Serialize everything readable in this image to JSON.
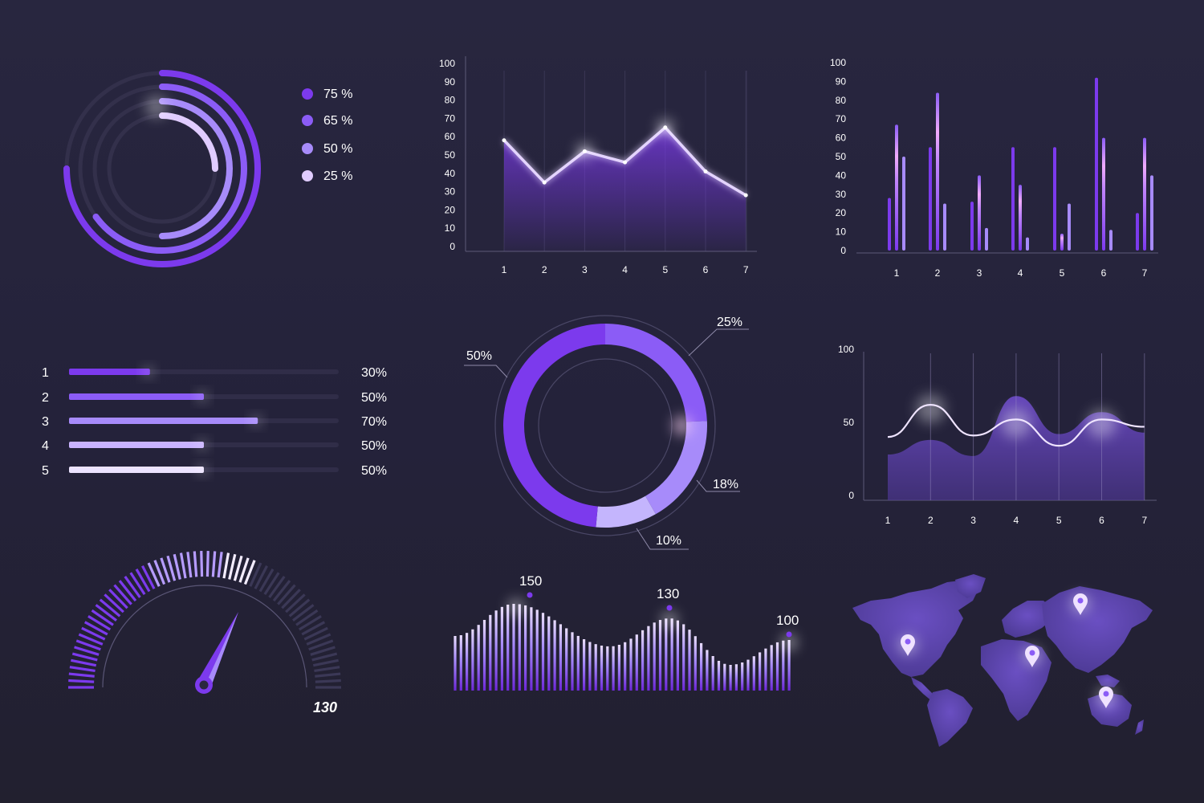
{
  "colors": {
    "bg": "#26243a",
    "purple_deep": "#7c3aed",
    "purple_mid": "#8b5cf6",
    "purple_light": "#a78bfa",
    "purple_pale": "#d8c4ff",
    "white": "#ffffff",
    "track": "#34314d"
  },
  "chart_data": [
    {
      "type": "radial-bar",
      "values": [
        75,
        65,
        50,
        25
      ],
      "legend": [
        "75 %",
        "65 %",
        "50 %",
        "25 %"
      ],
      "colors": [
        "#7c3aed",
        "#8b5cf6",
        "#a78bfa",
        "#e0ccff"
      ]
    },
    {
      "type": "line",
      "x": [
        1,
        2,
        3,
        4,
        5,
        6,
        7
      ],
      "values": [
        58,
        35,
        52,
        46,
        65,
        41,
        28
      ],
      "ylim": [
        0,
        100
      ],
      "yticks": [
        "0",
        "10",
        "20",
        "30",
        "40",
        "50",
        "60",
        "70",
        "80",
        "90",
        "100"
      ],
      "xticks": [
        "1",
        "2",
        "3",
        "4",
        "5",
        "6",
        "7"
      ]
    },
    {
      "type": "bar",
      "categories": [
        "1",
        "2",
        "3",
        "4",
        "5",
        "6",
        "7"
      ],
      "series": [
        {
          "values": [
            28,
            55,
            26,
            55,
            55,
            92,
            20
          ]
        },
        {
          "values": [
            67,
            84,
            40,
            35,
            9,
            60,
            60
          ]
        },
        {
          "values": [
            50,
            25,
            12,
            7,
            25,
            11,
            40
          ]
        }
      ],
      "ylim": [
        0,
        100
      ],
      "yticks": [
        "0",
        "10",
        "20",
        "30",
        "40",
        "50",
        "60",
        "70",
        "80",
        "90",
        "100"
      ]
    },
    {
      "type": "bar",
      "orientation": "horizontal",
      "categories": [
        "1",
        "2",
        "3",
        "4",
        "5"
      ],
      "values": [
        30,
        50,
        70,
        50,
        50
      ],
      "value_labels": [
        "30%",
        "50%",
        "70%",
        "50%",
        "50%"
      ]
    },
    {
      "type": "pie",
      "donut": true,
      "values": [
        25,
        18,
        10,
        50
      ],
      "labels": [
        "25%",
        "18%",
        "10%",
        "50%"
      ],
      "colors": [
        "#8b5cf6",
        "#a78bfa",
        "#c4b5fd",
        "#7c3aed"
      ]
    },
    {
      "type": "area",
      "x": [
        1,
        2,
        3,
        4,
        5,
        6,
        7
      ],
      "ylim": [
        0,
        100
      ],
      "yticks": [
        "0",
        "50",
        "100"
      ],
      "xticks": [
        "1",
        "2",
        "3",
        "4",
        "5",
        "6",
        "7"
      ],
      "series": [
        {
          "values": [
            40,
            62,
            41,
            52,
            34,
            52,
            47
          ]
        },
        {
          "values": [
            28,
            38,
            27,
            68,
            42,
            57,
            43
          ]
        }
      ]
    },
    {
      "type": "gauge",
      "value": 130,
      "value_label": "130",
      "fraction": 0.62
    },
    {
      "type": "bar",
      "style": "wave-columns",
      "peaks": [
        150,
        130,
        100
      ],
      "peak_labels": [
        "150",
        "130",
        "100"
      ]
    }
  ],
  "map": {
    "icon": "world-map-icon",
    "markers": [
      "north-america-pin",
      "africa-pin",
      "asia-pin",
      "australia-pin"
    ]
  }
}
